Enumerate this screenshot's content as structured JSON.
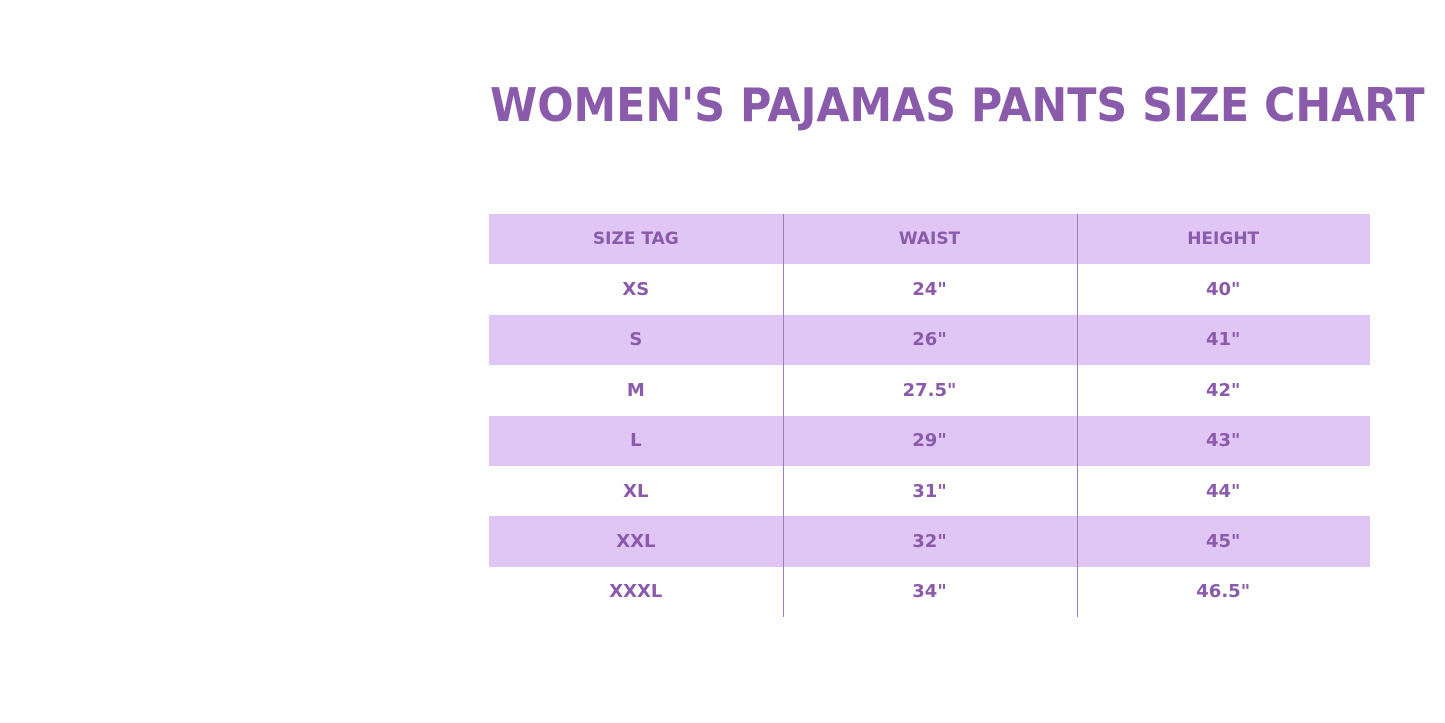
{
  "title": "WOMEN'S PAJAMAS PANTS SIZE CHART",
  "colors": {
    "text": "#8a5aab",
    "band": "#e0c6f4"
  },
  "table": {
    "headers": [
      "SIZE TAG",
      "WAIST",
      "HEIGHT"
    ],
    "rows": [
      [
        "XS",
        "24\"",
        "40\""
      ],
      [
        "S",
        "26\"",
        "41\""
      ],
      [
        "M",
        "27.5\"",
        "42\""
      ],
      [
        "L",
        "29\"",
        "43\""
      ],
      [
        "XL",
        "31\"",
        "44\""
      ],
      [
        "XXL",
        "32\"",
        "45\""
      ],
      [
        "XXXL",
        "34\"",
        "46.5\""
      ]
    ]
  }
}
